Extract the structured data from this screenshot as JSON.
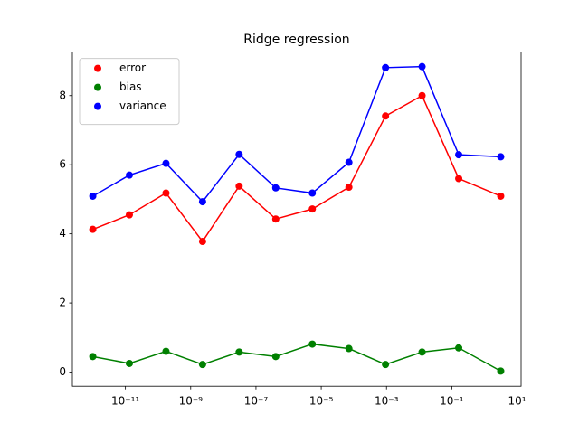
{
  "chart_data": {
    "type": "line",
    "title": "Ridge regression",
    "x": [
      1e-12,
      1.32e-11,
      1.75e-10,
      2.31e-09,
      3.05e-08,
      4.04e-07,
      5.34e-06,
      7.05e-05,
      0.000933,
      0.0123,
      0.163,
      3.16
    ],
    "series": [
      {
        "name": "error",
        "color": "#ff0000",
        "values": [
          4.13,
          4.55,
          5.18,
          3.78,
          5.38,
          4.43,
          4.72,
          5.35,
          7.41,
          8.0,
          5.6,
          5.09
        ]
      },
      {
        "name": "bias",
        "color": "#008000",
        "values": [
          0.45,
          0.25,
          0.6,
          0.22,
          0.58,
          0.45,
          0.81,
          0.68,
          0.22,
          0.58,
          0.7,
          0.03
        ]
      },
      {
        "name": "variance",
        "color": "#0000ff",
        "values": [
          5.09,
          5.7,
          6.04,
          4.93,
          6.3,
          5.33,
          5.18,
          6.07,
          8.81,
          8.84,
          6.29,
          6.23
        ]
      }
    ],
    "xscale": "log",
    "xlim": [
      2.37e-13,
      13.3
    ],
    "xticks": [
      {
        "value": 1e-11,
        "label": "10⁻¹¹"
      },
      {
        "value": 1e-09,
        "label": "10⁻⁹"
      },
      {
        "value": 1e-07,
        "label": "10⁻⁷"
      },
      {
        "value": 1e-05,
        "label": "10⁻⁵"
      },
      {
        "value": 0.001,
        "label": "10⁻³"
      },
      {
        "value": 0.1,
        "label": "10⁻¹"
      },
      {
        "value": 10,
        "label": "10¹"
      }
    ],
    "ylim": [
      -0.41,
      9.26
    ],
    "yticks": [
      0,
      2,
      4,
      6,
      8
    ],
    "legend": "upper left"
  }
}
